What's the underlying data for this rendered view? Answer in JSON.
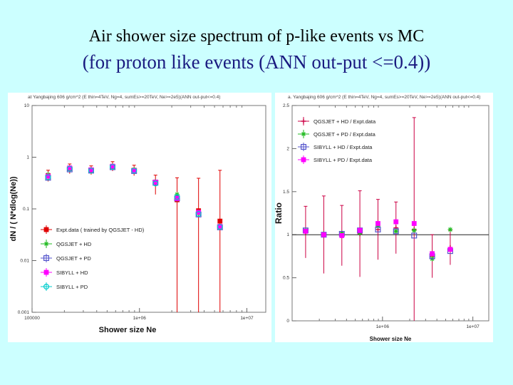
{
  "page": {
    "title_line1": "Air shower size spectrum of p-like events  vs  MC",
    "title_line2": "(for proton like events (ANN out-put <=0.4))"
  },
  "colors": {
    "background": "#ccffff",
    "exptdata": "#e00000",
    "qgsjet_hd": "#cc0044",
    "qgsjet_pd": "#22bb22",
    "qgsjet_pd_open": "#5555cc",
    "sibyll_hd": "#ff00ff",
    "sibyll_pd": "#00cccc"
  },
  "chart_data": [
    {
      "type": "scatter",
      "header": "at Yangbajing 606 g/cm^2 (E thin=4TeV, Ng=4, sumEs>=20TeV, Ne>=2e5)(ANN out-put<=0.4)",
      "xlabel": "Shower size Ne",
      "ylabel": "dN / ( N*dlog(Ne))",
      "xscale": "log",
      "yscale": "log",
      "xlim": [
        100000,
        15000000
      ],
      "ylim": [
        0.001,
        10
      ],
      "x_ticks": [
        100000,
        1000000,
        10000000
      ],
      "x_tick_labels": [
        "100000",
        "1e+06",
        "1e+07"
      ],
      "y_ticks": [
        0.001,
        0.01,
        0.1,
        1,
        10
      ],
      "y_tick_labels": [
        "0.001",
        "0.01",
        "0.1",
        "1",
        "10"
      ],
      "legend_position": "bottom-left",
      "x": [
        141000,
        224000,
        355000,
        562000,
        891000,
        1410000,
        2240000,
        3550000,
        5620000
      ],
      "series": [
        {
          "name": "Expt.data ( trained by QGSJET - HD)",
          "marker": "filled-square",
          "color": "#e00000",
          "values": [
            0.44,
            0.6,
            0.56,
            0.66,
            0.56,
            0.33,
            0.15,
            0.092,
            0.058
          ],
          "errors_up": [
            0.12,
            0.14,
            0.12,
            0.16,
            0.14,
            0.12,
            0.25,
            0.3,
            0.5
          ],
          "errors_down": [
            0.1,
            0.12,
            0.1,
            0.12,
            0.12,
            0.14,
            0.149,
            0.0915,
            0.0578
          ]
        },
        {
          "name": "QGSJET + HD",
          "marker": "asterisk",
          "color": "#22bb22",
          "values": [
            0.46,
            0.61,
            0.58,
            0.68,
            0.57,
            0.34,
            0.19,
            0.082,
            0.046
          ]
        },
        {
          "name": "QGSJET + PD",
          "marker": "open-square",
          "color": "#5555cc",
          "values": [
            0.4,
            0.58,
            0.55,
            0.64,
            0.54,
            0.32,
            0.16,
            0.078,
            0.044
          ]
        },
        {
          "name": "SIBYLL + HD",
          "marker": "filled-square",
          "color": "#ff00ff",
          "values": [
            0.43,
            0.62,
            0.57,
            0.67,
            0.55,
            0.33,
            0.16,
            0.086,
            0.046
          ]
        },
        {
          "name": "SIBYLL + PD",
          "marker": "open-circle",
          "color": "#00cccc",
          "values": [
            0.41,
            0.6,
            0.55,
            0.65,
            0.55,
            0.31,
            0.17,
            0.08,
            0.045
          ]
        }
      ]
    },
    {
      "type": "scatter",
      "header": "a. Yangbajing 606 g/cm^2 (E thin=4TeV, Ng=4, sumEs>=20TeV, Ne>=2e5)(ANN out-put<=0.4)",
      "xlabel": "Shower size Ne",
      "ylabel": "Ratio",
      "xscale": "log",
      "xlim": [
        100000,
        15000000
      ],
      "ylim": [
        0,
        2.5
      ],
      "x_ticks": [
        1000000,
        10000000
      ],
      "x_tick_labels": [
        "1e+06",
        "1e+07"
      ],
      "y_ticks": [
        0,
        0.5,
        1,
        1.5,
        2,
        2.5
      ],
      "y_tick_labels": [
        "0",
        "0.5",
        "1",
        "1.5",
        "2",
        "2.5"
      ],
      "reference_line": 1.0,
      "legend_position": "top-left",
      "x": [
        141000,
        224000,
        355000,
        562000,
        891000,
        1410000,
        2240000,
        3550000,
        5620000
      ],
      "series": [
        {
          "name": "QGSJET + HD / Expt.data",
          "marker": "plus",
          "color": "#cc0044",
          "values": [
            1.03,
            1.0,
            0.99,
            1.01,
            1.06,
            1.08,
            1.06,
            0.75,
            0.85
          ],
          "errors_up": [
            0.3,
            0.45,
            0.35,
            0.5,
            0.35,
            0.3,
            1.3,
            0.25,
            0.2
          ],
          "errors_down": [
            0.3,
            0.45,
            0.35,
            0.5,
            0.35,
            0.3,
            1.06,
            0.25,
            0.2
          ]
        },
        {
          "name": "QGSJET + PD / Expt.data",
          "marker": "asterisk",
          "color": "#22bb22",
          "values": [
            1.05,
            1.01,
            1.02,
            1.02,
            1.1,
            1.04,
            1.05,
            0.72,
            1.06
          ]
        },
        {
          "name": "SIBYLL + HD / Expt.data",
          "marker": "open-square",
          "color": "#5555cc",
          "values": [
            1.05,
            1.0,
            1.01,
            1.05,
            1.06,
            1.04,
            0.99,
            0.75,
            0.81
          ]
        },
        {
          "name": "SIBYLL + PD / Expt.data",
          "marker": "filled-square",
          "color": "#ff00ff",
          "values": [
            1.04,
            1.0,
            0.99,
            1.05,
            1.13,
            1.15,
            1.13,
            0.78,
            0.83
          ]
        }
      ]
    }
  ]
}
